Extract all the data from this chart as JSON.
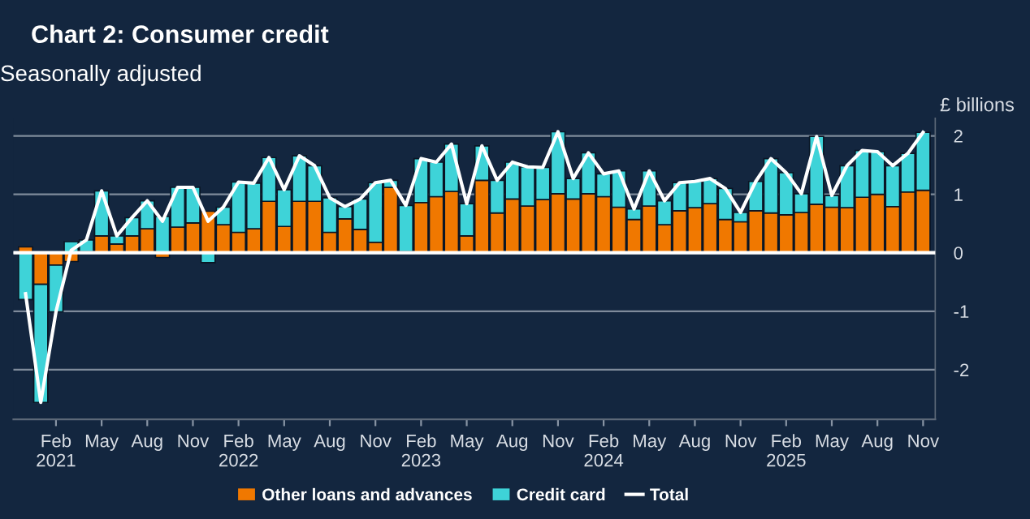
{
  "chart_data": {
    "type": "bar",
    "title": "Chart 2: Consumer credit",
    "subtitle": "Seasonally adjusted",
    "ylabel": "£ billions",
    "categories": [
      null,
      null,
      "Feb\n2021",
      null,
      null,
      "May",
      null,
      null,
      "Aug",
      null,
      null,
      "Nov",
      null,
      null,
      "Feb\n2022",
      null,
      null,
      "May",
      null,
      null,
      "Aug",
      null,
      null,
      "Nov",
      null,
      null,
      "Feb\n2023",
      null,
      null,
      "May",
      null,
      null,
      "Aug",
      null,
      null,
      "Nov",
      null,
      null,
      "Feb\n2024",
      null,
      null,
      "May",
      null,
      null,
      "Aug",
      null,
      null,
      "Nov",
      null,
      null,
      "Feb\n2025",
      null,
      null,
      "May",
      null,
      null,
      "Aug",
      null,
      null,
      "Nov"
    ],
    "stacked": true,
    "series": [
      {
        "name": "Other loans and advances",
        "color": "#f07800",
        "values": [
          0.1,
          -0.54,
          -0.21,
          -0.15,
          0.02,
          0.29,
          0.15,
          0.29,
          0.41,
          -0.08,
          0.44,
          0.51,
          0.71,
          0.48,
          0.35,
          0.41,
          0.88,
          0.45,
          0.88,
          0.88,
          0.35,
          0.58,
          0.4,
          0.18,
          1.12,
          0.02,
          0.86,
          0.96,
          1.05,
          0.29,
          1.24,
          0.68,
          0.92,
          0.8,
          0.91,
          1.01,
          0.92,
          1.01,
          0.96,
          0.78,
          0.57,
          0.8,
          0.48,
          0.72,
          0.77,
          0.84,
          0.57,
          0.53,
          0.72,
          0.68,
          0.65,
          0.69,
          0.83,
          0.78,
          0.77,
          0.95,
          1.0,
          0.79,
          1.04,
          1.07
        ]
      },
      {
        "name": "Credit card",
        "color": "#3ed3d8",
        "values": [
          -0.8,
          -2.02,
          -0.8,
          0.19,
          0.2,
          0.77,
          0.14,
          0.31,
          0.48,
          0.62,
          0.68,
          0.61,
          -0.17,
          0.3,
          0.86,
          0.78,
          0.75,
          0.63,
          0.78,
          0.61,
          0.59,
          0.21,
          0.52,
          1.02,
          0.12,
          0.79,
          0.75,
          0.59,
          0.81,
          0.55,
          0.59,
          0.56,
          0.63,
          0.67,
          0.55,
          1.06,
          0.35,
          0.7,
          0.39,
          0.62,
          0.18,
          0.6,
          0.41,
          0.48,
          0.45,
          0.43,
          0.53,
          0.16,
          0.5,
          0.93,
          0.72,
          0.32,
          1.16,
          0.2,
          0.72,
          0.8,
          0.73,
          0.7,
          0.66,
          0.99
        ]
      },
      {
        "name": "Total",
        "type": "line",
        "color": "#ffffff",
        "values": [
          -0.7,
          -2.56,
          -1.01,
          0.04,
          0.22,
          1.06,
          0.29,
          0.6,
          0.89,
          0.54,
          1.12,
          1.12,
          0.54,
          0.78,
          1.21,
          1.19,
          1.63,
          1.08,
          1.66,
          1.49,
          0.94,
          0.79,
          0.92,
          1.2,
          1.24,
          0.81,
          1.61,
          1.55,
          1.86,
          0.84,
          1.83,
          1.24,
          1.55,
          1.47,
          1.46,
          2.07,
          1.27,
          1.71,
          1.35,
          1.4,
          0.75,
          1.4,
          0.89,
          1.2,
          1.22,
          1.27,
          1.1,
          0.69,
          1.22,
          1.61,
          1.37,
          1.01,
          1.99,
          0.98,
          1.49,
          1.75,
          1.73,
          1.49,
          1.7,
          2.06
        ]
      }
    ],
    "ylim": [
      -2.85,
      2.3
    ],
    "yticks": [
      2,
      1,
      0,
      -1,
      -2
    ],
    "grid": "y",
    "ref_lines": [
      {
        "axis": "y",
        "value": 0,
        "color": "#ffffff"
      }
    ],
    "legend": "bottom"
  }
}
